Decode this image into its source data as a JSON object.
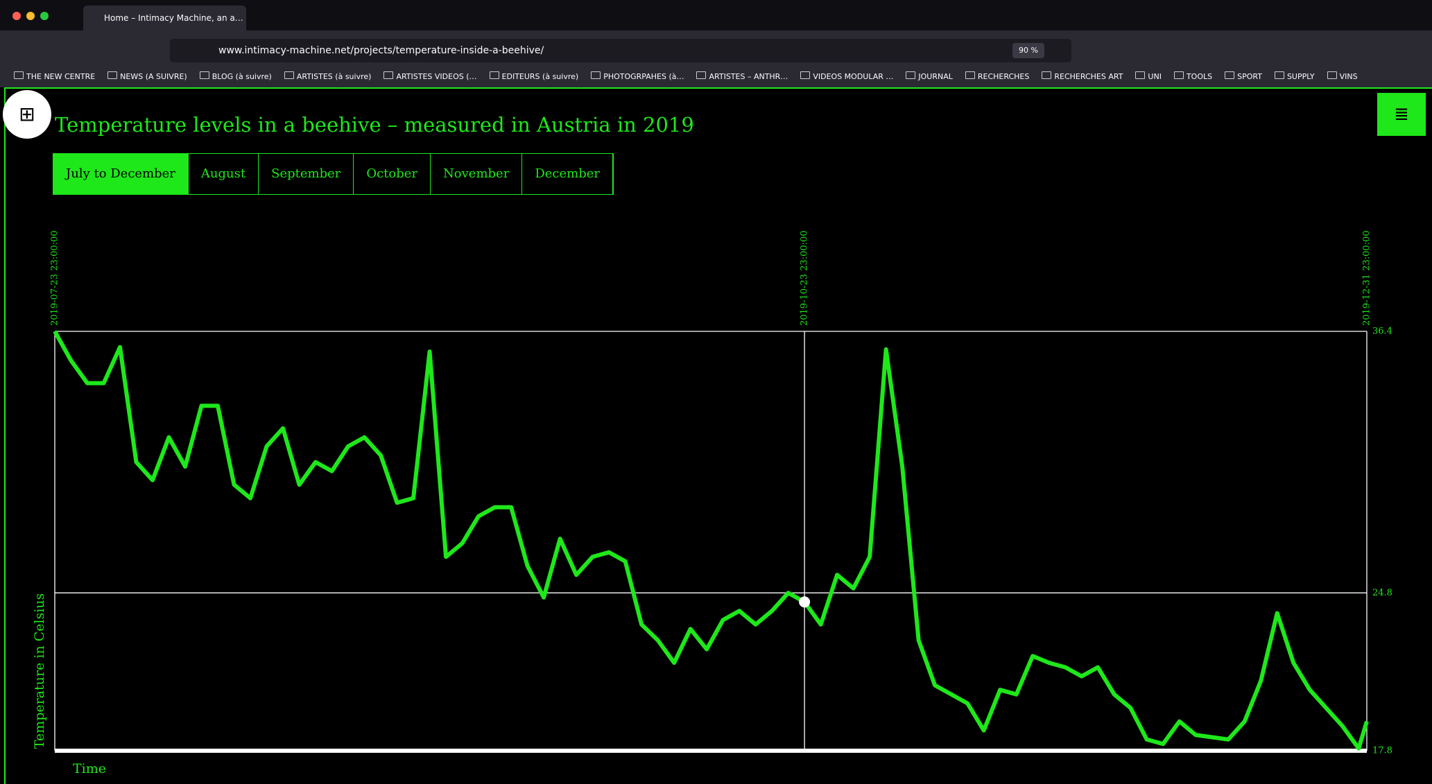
{
  "browser": {
    "tab_title": "Home – Intimacy Machine, an a…",
    "url": "www.intimacy-machine.net/projects/temperature-inside-a-beehive/",
    "zoom": "90 %",
    "bookmarks": [
      "THE NEW CENTRE",
      "NEWS (A SUIVRE)",
      "BLOG (à suivre)",
      "ARTISTES (à suivre)",
      "ARTISTES VIDEOS (…",
      "EDITEURS (à suivre)",
      "PHOTOGRPAHES (à…",
      "ARTISTES – ANTHR…",
      "VIDEOS MODULAR …",
      "JOURNAL",
      "RECHERCHES",
      "RECHERCHES ART",
      "UNI",
      "TOOLS",
      "SPORT",
      "SUPPLY",
      "VINS"
    ]
  },
  "page": {
    "tabs": [
      "July to December",
      "August",
      "September",
      "October",
      "November",
      "December"
    ],
    "active_tab": 0
  },
  "chart_data": {
    "type": "line",
    "title": "Temperature levels in a beehive – measured in Austria in 2019",
    "x_label": "Time",
    "y_label": "Temperature in Celsius",
    "x": [
      "2019-07-23",
      "2019-07-25",
      "2019-07-27",
      "2019-07-29",
      "2019-07-31",
      "2019-08-02",
      "2019-08-04",
      "2019-08-06",
      "2019-08-08",
      "2019-08-10",
      "2019-08-12",
      "2019-08-14",
      "2019-08-16",
      "2019-08-18",
      "2019-08-20",
      "2019-08-22",
      "2019-08-24",
      "2019-08-26",
      "2019-08-28",
      "2019-08-30",
      "2019-09-01",
      "2019-09-03",
      "2019-09-05",
      "2019-09-07",
      "2019-09-09",
      "2019-09-11",
      "2019-09-13",
      "2019-09-15",
      "2019-09-17",
      "2019-09-19",
      "2019-09-21",
      "2019-09-23",
      "2019-09-25",
      "2019-09-27",
      "2019-09-29",
      "2019-10-01",
      "2019-10-03",
      "2019-10-05",
      "2019-10-07",
      "2019-10-09",
      "2019-10-11",
      "2019-10-13",
      "2019-10-15",
      "2019-10-17",
      "2019-10-19",
      "2019-10-21",
      "2019-10-23",
      "2019-10-25",
      "2019-10-27",
      "2019-10-29",
      "2019-10-31",
      "2019-11-02",
      "2019-11-04",
      "2019-11-06",
      "2019-11-08",
      "2019-11-10",
      "2019-11-12",
      "2019-11-14",
      "2019-11-16",
      "2019-11-18",
      "2019-11-20",
      "2019-11-22",
      "2019-11-24",
      "2019-11-26",
      "2019-11-28",
      "2019-11-30",
      "2019-12-02",
      "2019-12-04",
      "2019-12-06",
      "2019-12-08",
      "2019-12-10",
      "2019-12-12",
      "2019-12-14",
      "2019-12-16",
      "2019-12-18",
      "2019-12-20",
      "2019-12-22",
      "2019-12-24",
      "2019-12-26",
      "2019-12-28",
      "2019-12-30",
      "2019-12-31"
    ],
    "series": [
      {
        "color": "#1ee81a",
        "values": [
          36.4,
          35.1,
          34.1,
          34.1,
          35.7,
          30.6,
          29.8,
          31.7,
          30.4,
          33.1,
          33.1,
          29.6,
          29.0,
          31.3,
          32.1,
          29.6,
          30.6,
          30.2,
          31.3,
          31.7,
          30.9,
          28.8,
          29.0,
          35.5,
          26.4,
          27.0,
          28.2,
          28.6,
          28.6,
          26.0,
          24.6,
          27.2,
          25.6,
          26.4,
          26.6,
          26.2,
          23.4,
          22.7,
          21.7,
          23.2,
          22.3,
          23.6,
          24.0,
          23.4,
          24.0,
          24.8,
          24.4,
          23.4,
          25.6,
          25.0,
          26.4,
          35.6,
          30.4,
          22.7,
          20.7,
          20.3,
          19.9,
          18.7,
          20.5,
          20.3,
          22.0,
          21.7,
          21.5,
          21.1,
          21.5,
          20.3,
          19.7,
          18.3,
          18.1,
          19.1,
          18.5,
          18.4,
          18.3,
          19.1,
          20.9,
          23.9,
          21.7,
          20.5,
          19.7,
          18.9,
          17.9,
          19.1
        ]
      }
    ],
    "highlight_index": 46,
    "xlim": [
      "2019-07-23",
      "2019-12-31"
    ],
    "xticks": [
      {
        "value": "2019-07-23",
        "label": "2019-07-23 23:00:00"
      },
      {
        "value": "2019-10-23",
        "label": "2019-10-23 23:00:00"
      },
      {
        "value": "2019-12-31",
        "label": "2019-12-31 23:00:00"
      }
    ],
    "ylim": [
      17.8,
      36.4
    ],
    "yticks": [
      17.8,
      24.8,
      36.4
    ],
    "grid": true
  }
}
